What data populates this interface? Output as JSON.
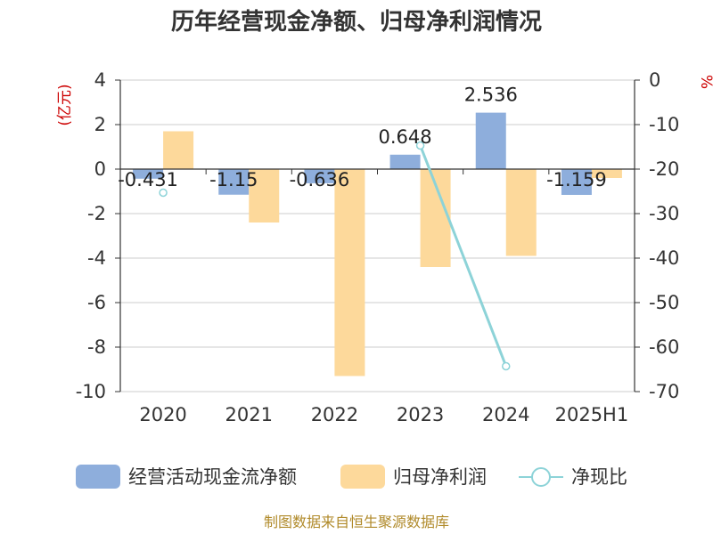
{
  "chart_data": {
    "type": "bar",
    "title": "历年经营现金净额、归母净利润情况",
    "categories": [
      "2020",
      "2021",
      "2022",
      "2023",
      "2024",
      "2025H1"
    ],
    "series": [
      {
        "name": "经营活动现金流净额",
        "type": "bar",
        "axis": "left",
        "color": "#8eaedc",
        "values": [
          -0.431,
          -1.15,
          -0.636,
          0.648,
          2.536,
          -1.159
        ],
        "labels": [
          "-0.431",
          "-1.15",
          "-0.636",
          "0.648",
          "2.536",
          "-1.159"
        ]
      },
      {
        "name": "归母净利润",
        "type": "bar",
        "axis": "left",
        "color": "#fdd99b",
        "values": [
          1.7,
          -2.4,
          -9.3,
          -4.4,
          -3.9,
          -0.4
        ]
      },
      {
        "name": "净现比",
        "type": "line",
        "axis": "right",
        "color": "#8dd3d8",
        "values": [
          -25.3,
          null,
          null,
          -14.7,
          -64.3,
          null
        ]
      }
    ],
    "left_axis": {
      "unit": "(亿元)",
      "ylim": [
        -10,
        4
      ],
      "ticks": [
        "4",
        "2",
        "0",
        "-2",
        "-4",
        "-6",
        "-8",
        "-10"
      ]
    },
    "right_axis": {
      "unit": "%",
      "ylim": [
        -70,
        0
      ],
      "ticks": [
        "0",
        "-10",
        "-20",
        "-30",
        "-40",
        "-50",
        "-60",
        "-70"
      ]
    },
    "grid": true,
    "legend_position": "bottom"
  },
  "source": "制图数据来自恒生聚源数据库"
}
